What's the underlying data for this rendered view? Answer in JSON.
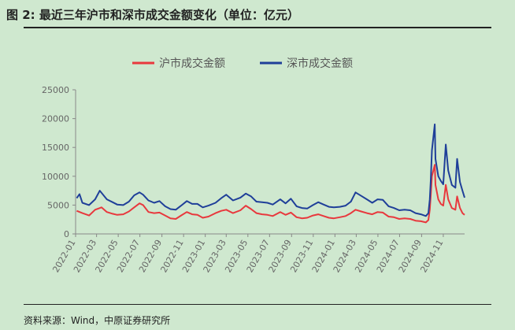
{
  "figure": {
    "title": "图 2:  最近三年沪市和深市成交金额变化（单位：亿元）",
    "source": "资料来源：Wind，中原证券研究所"
  },
  "chart_data": {
    "type": "line",
    "title": "图 2:  最近三年沪市和深市成交金额变化（单位：亿元）",
    "xlabel": "",
    "ylabel": "",
    "ylim": [
      0,
      25000
    ],
    "yticks": [
      0,
      5000,
      10000,
      15000,
      20000,
      25000
    ],
    "ytick_labels": [
      "0",
      "5000",
      "10000",
      "15000",
      "20000",
      "25000"
    ],
    "xlim": [
      "2022-01",
      "2024-12-31"
    ],
    "x_tick_labels": [
      "2022-01",
      "2022-03",
      "2022-05",
      "2022-07",
      "2022-09",
      "2022-11",
      "2023-01",
      "2023-03",
      "2023-05",
      "2023-07",
      "2023-09",
      "2023-11",
      "2024-01",
      "2024-03",
      "2024-05",
      "2024-07",
      "2024-09",
      "2024-11"
    ],
    "grid": false,
    "legend_position": "top",
    "series": [
      {
        "name": "沪市成交金额",
        "color": "#e8383d",
        "points": [
          [
            "2022-01-04",
            4000
          ],
          [
            "2022-01-20",
            3600
          ],
          [
            "2022-02-08",
            3200
          ],
          [
            "2022-02-25",
            4200
          ],
          [
            "2022-03-15",
            4600
          ],
          [
            "2022-03-30",
            3800
          ],
          [
            "2022-04-15",
            3500
          ],
          [
            "2022-04-28",
            3300
          ],
          [
            "2022-05-15",
            3400
          ],
          [
            "2022-05-31",
            3900
          ],
          [
            "2022-06-15",
            4600
          ],
          [
            "2022-06-30",
            5300
          ],
          [
            "2022-07-10",
            5000
          ],
          [
            "2022-07-25",
            3800
          ],
          [
            "2022-08-10",
            3600
          ],
          [
            "2022-08-25",
            3700
          ],
          [
            "2022-09-10",
            3200
          ],
          [
            "2022-09-25",
            2700
          ],
          [
            "2022-10-10",
            2600
          ],
          [
            "2022-10-25",
            3200
          ],
          [
            "2022-11-10",
            3800
          ],
          [
            "2022-11-25",
            3400
          ],
          [
            "2022-12-10",
            3300
          ],
          [
            "2022-12-25",
            2800
          ],
          [
            "2023-01-10",
            3000
          ],
          [
            "2023-01-30",
            3600
          ],
          [
            "2023-02-15",
            4000
          ],
          [
            "2023-03-01",
            4200
          ],
          [
            "2023-03-20",
            3600
          ],
          [
            "2023-04-10",
            4100
          ],
          [
            "2023-04-25",
            4900
          ],
          [
            "2023-05-10",
            4300
          ],
          [
            "2023-05-25",
            3600
          ],
          [
            "2023-06-10",
            3400
          ],
          [
            "2023-06-25",
            3300
          ],
          [
            "2023-07-10",
            3100
          ],
          [
            "2023-07-31",
            3800
          ],
          [
            "2023-08-15",
            3300
          ],
          [
            "2023-08-30",
            3700
          ],
          [
            "2023-09-15",
            2900
          ],
          [
            "2023-09-30",
            2700
          ],
          [
            "2023-10-15",
            2800
          ],
          [
            "2023-10-31",
            3200
          ],
          [
            "2023-11-15",
            3400
          ],
          [
            "2023-11-30",
            3100
          ],
          [
            "2023-12-15",
            2800
          ],
          [
            "2023-12-29",
            2700
          ],
          [
            "2024-01-15",
            2900
          ],
          [
            "2024-01-31",
            3100
          ],
          [
            "2024-02-15",
            3600
          ],
          [
            "2024-02-28",
            4200
          ],
          [
            "2024-03-15",
            3900
          ],
          [
            "2024-03-31",
            3600
          ],
          [
            "2024-04-15",
            3400
          ],
          [
            "2024-04-30",
            3800
          ],
          [
            "2024-05-15",
            3700
          ],
          [
            "2024-05-31",
            3000
          ],
          [
            "2024-06-15",
            2900
          ],
          [
            "2024-06-30",
            2600
          ],
          [
            "2024-07-15",
            2700
          ],
          [
            "2024-07-31",
            2600
          ],
          [
            "2024-08-15",
            2300
          ],
          [
            "2024-08-30",
            2200
          ],
          [
            "2024-09-13",
            2000
          ],
          [
            "2024-09-20",
            2400
          ],
          [
            "2024-09-24",
            4200
          ],
          [
            "2024-09-27",
            6800
          ],
          [
            "2024-09-30",
            10000
          ],
          [
            "2024-10-08",
            12000
          ],
          [
            "2024-10-10",
            8500
          ],
          [
            "2024-10-18",
            6000
          ],
          [
            "2024-10-25",
            5200
          ],
          [
            "2024-11-01",
            4900
          ],
          [
            "2024-11-08",
            8500
          ],
          [
            "2024-11-15",
            6000
          ],
          [
            "2024-11-25",
            4500
          ],
          [
            "2024-12-05",
            4200
          ],
          [
            "2024-12-10",
            6500
          ],
          [
            "2024-12-18",
            4500
          ],
          [
            "2024-12-25",
            3600
          ],
          [
            "2024-12-31",
            3300
          ]
        ]
      },
      {
        "name": "深市成交金额",
        "color": "#1f3f99",
        "points": [
          [
            "2022-01-04",
            6200
          ],
          [
            "2022-01-12",
            6900
          ],
          [
            "2022-01-20",
            5400
          ],
          [
            "2022-02-08",
            5000
          ],
          [
            "2022-02-25",
            6000
          ],
          [
            "2022-03-10",
            7500
          ],
          [
            "2022-03-30",
            6000
          ],
          [
            "2022-04-15",
            5500
          ],
          [
            "2022-04-28",
            5100
          ],
          [
            "2022-05-15",
            5000
          ],
          [
            "2022-05-31",
            5600
          ],
          [
            "2022-06-15",
            6700
          ],
          [
            "2022-06-30",
            7200
          ],
          [
            "2022-07-10",
            6800
          ],
          [
            "2022-07-25",
            5800
          ],
          [
            "2022-08-10",
            5400
          ],
          [
            "2022-08-25",
            5700
          ],
          [
            "2022-09-10",
            4800
          ],
          [
            "2022-09-25",
            4300
          ],
          [
            "2022-10-10",
            4200
          ],
          [
            "2022-10-25",
            4900
          ],
          [
            "2022-11-10",
            5700
          ],
          [
            "2022-11-25",
            5200
          ],
          [
            "2022-12-10",
            5200
          ],
          [
            "2022-12-25",
            4600
          ],
          [
            "2023-01-10",
            4900
          ],
          [
            "2023-01-30",
            5400
          ],
          [
            "2023-02-15",
            6200
          ],
          [
            "2023-03-01",
            6800
          ],
          [
            "2023-03-20",
            5800
          ],
          [
            "2023-04-10",
            6300
          ],
          [
            "2023-04-25",
            7000
          ],
          [
            "2023-05-10",
            6500
          ],
          [
            "2023-05-25",
            5600
          ],
          [
            "2023-06-10",
            5500
          ],
          [
            "2023-06-25",
            5400
          ],
          [
            "2023-07-10",
            5100
          ],
          [
            "2023-07-31",
            6000
          ],
          [
            "2023-08-15",
            5300
          ],
          [
            "2023-08-30",
            6100
          ],
          [
            "2023-09-15",
            4800
          ],
          [
            "2023-09-30",
            4500
          ],
          [
            "2023-10-15",
            4400
          ],
          [
            "2023-10-31",
            5000
          ],
          [
            "2023-11-15",
            5500
          ],
          [
            "2023-11-30",
            5100
          ],
          [
            "2023-12-15",
            4700
          ],
          [
            "2023-12-29",
            4600
          ],
          [
            "2024-01-15",
            4700
          ],
          [
            "2024-01-31",
            4900
          ],
          [
            "2024-02-15",
            5600
          ],
          [
            "2024-02-28",
            7200
          ],
          [
            "2024-03-15",
            6600
          ],
          [
            "2024-03-31",
            6000
          ],
          [
            "2024-04-15",
            5400
          ],
          [
            "2024-04-30",
            6000
          ],
          [
            "2024-05-15",
            5900
          ],
          [
            "2024-05-31",
            4800
          ],
          [
            "2024-06-15",
            4500
          ],
          [
            "2024-06-30",
            4100
          ],
          [
            "2024-07-15",
            4200
          ],
          [
            "2024-07-31",
            4100
          ],
          [
            "2024-08-15",
            3600
          ],
          [
            "2024-08-30",
            3400
          ],
          [
            "2024-09-13",
            3100
          ],
          [
            "2024-09-20",
            3600
          ],
          [
            "2024-09-24",
            6000
          ],
          [
            "2024-09-27",
            9500
          ],
          [
            "2024-09-30",
            14500
          ],
          [
            "2024-10-08",
            19000
          ],
          [
            "2024-10-10",
            13000
          ],
          [
            "2024-10-18",
            10000
          ],
          [
            "2024-10-25",
            9200
          ],
          [
            "2024-11-01",
            8600
          ],
          [
            "2024-11-08",
            15500
          ],
          [
            "2024-11-15",
            11000
          ],
          [
            "2024-11-25",
            8500
          ],
          [
            "2024-12-05",
            8000
          ],
          [
            "2024-12-10",
            13000
          ],
          [
            "2024-12-18",
            9000
          ],
          [
            "2024-12-25",
            7500
          ],
          [
            "2024-12-31",
            6300
          ]
        ]
      }
    ]
  }
}
